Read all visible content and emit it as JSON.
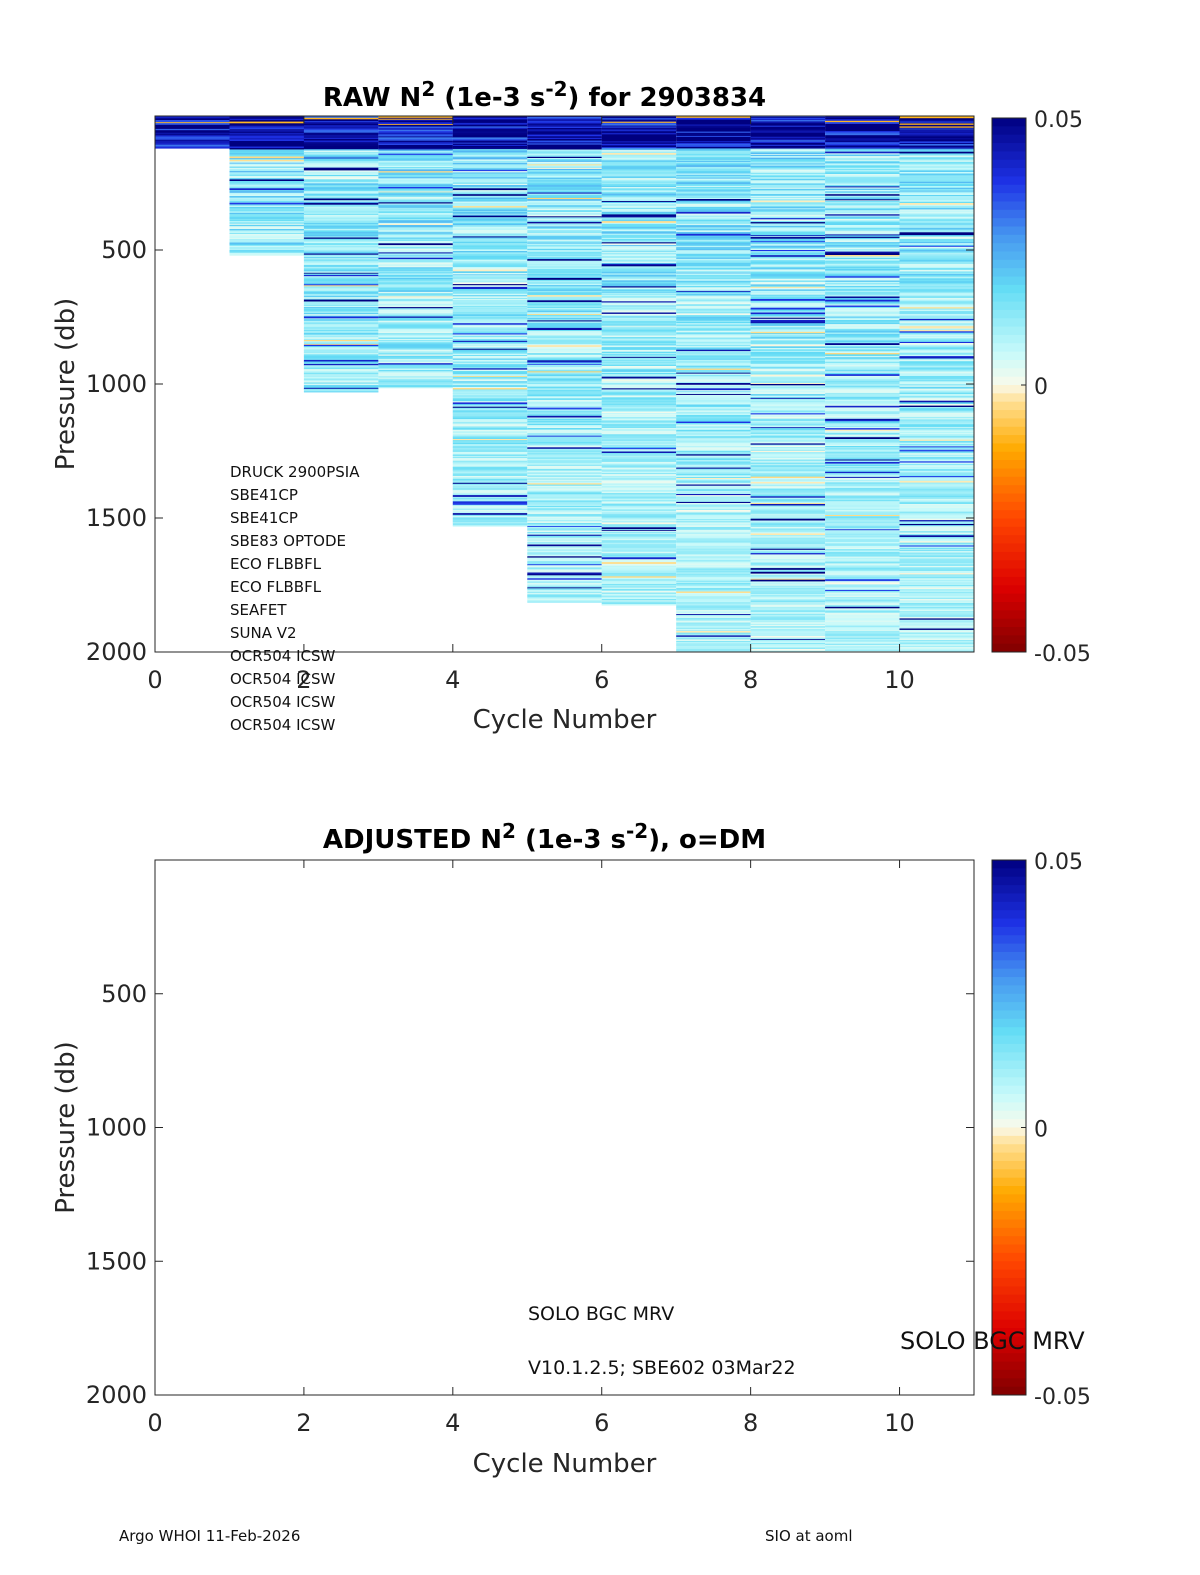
{
  "chart_data": [
    {
      "type": "heatmap",
      "title_parts": [
        "RAW N",
        "2",
        " (1e-3 s",
        "-2",
        ") for 2903834"
      ],
      "xlabel": "Cycle Number",
      "ylabel": "Pressure (db)",
      "xlim": [
        0,
        11
      ],
      "ylim": [
        0,
        2000
      ],
      "y_reversed": true,
      "xticks": [
        0,
        2,
        4,
        6,
        8,
        10
      ],
      "yticks": [
        500,
        1000,
        1500,
        2000
      ],
      "colorbar": {
        "clim": [
          -0.05,
          0.05
        ],
        "ticks": [
          "0.05",
          "0",
          "-0.05"
        ]
      },
      "columns": [
        {
          "cycle": 0,
          "max_pressure": 120
        },
        {
          "cycle": 1,
          "max_pressure": 520
        },
        {
          "cycle": 2,
          "max_pressure": 1030
        },
        {
          "cycle": 3,
          "max_pressure": 1015
        },
        {
          "cycle": 4,
          "max_pressure": 1530
        },
        {
          "cycle": 5,
          "max_pressure": 1815
        },
        {
          "cycle": 6,
          "max_pressure": 1825
        },
        {
          "cycle": 7,
          "max_pressure": 2000
        },
        {
          "cycle": 8,
          "max_pressure": 2000
        },
        {
          "cycle": 9,
          "max_pressure": 2000
        },
        {
          "cycle": 10,
          "max_pressure": 2000
        }
      ]
    },
    {
      "type": "heatmap",
      "title_parts": [
        "ADJUSTED N",
        "2",
        " (1e-3 s",
        "-2",
        "), o=DM"
      ],
      "xlabel": "Cycle Number",
      "ylabel": "Pressure (db)",
      "xlim": [
        0,
        11
      ],
      "ylim": [
        0,
        2000
      ],
      "y_reversed": true,
      "xticks": [
        0,
        2,
        4,
        6,
        8,
        10
      ],
      "yticks": [
        500,
        1000,
        1500,
        2000
      ],
      "colorbar": {
        "clim": [
          -0.05,
          0.05
        ],
        "ticks": [
          "0.05",
          "0",
          "-0.05"
        ]
      },
      "columns": []
    }
  ],
  "sensors": [
    "DRUCK 2900PSIA",
    "SBE41CP",
    "SBE41CP",
    "SBE83 OPTODE",
    "ECO FLBBFL",
    "ECO FLBBFL",
    "SEAFET",
    "SUNA V2",
    "OCR504 ICSW",
    "OCR504 ICSW",
    "OCR504 ICSW",
    "OCR504 ICSW"
  ],
  "annotations": {
    "float_type": "SOLO BGC MRV",
    "firmware": "V10.1.2.5; SBE602 03Mar22",
    "float_type_right": "SOLO BGC MRV"
  },
  "footer": {
    "left": "Argo WHOI 11-Feb-2026",
    "right": "SIO at aoml"
  }
}
